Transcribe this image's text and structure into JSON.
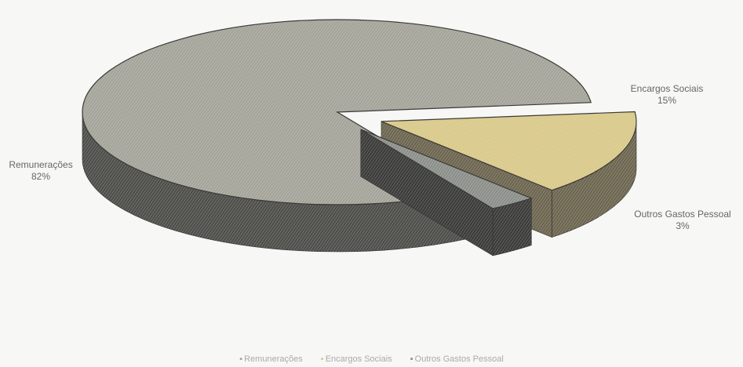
{
  "chart_data": {
    "type": "pie",
    "categories": [
      "Remunerações",
      "Encargos Sociais",
      "Outros Gastos Pessoal"
    ],
    "values": [
      82,
      15,
      3
    ],
    "value_labels": [
      "82%",
      "15%",
      "3%"
    ],
    "style": "3d-exploded",
    "legend": "bottom",
    "colors": [
      "#a4a49a",
      "#d9c98a",
      "#8c8f8a"
    ],
    "side_colors": [
      "#4e4e4a",
      "#6d6650",
      "#3c3c3a"
    ]
  }
}
